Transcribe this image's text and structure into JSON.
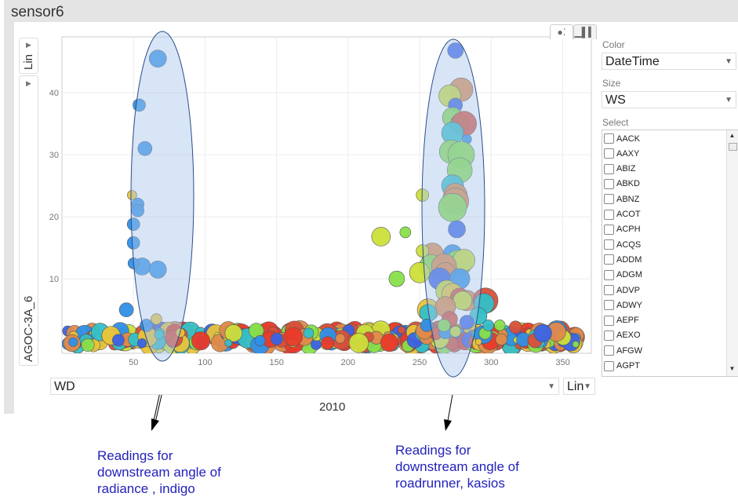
{
  "window": {
    "title": "sensor6"
  },
  "yscale_button": {
    "label": "Lin"
  },
  "yvar_select": {
    "value": "AGOC-3A_6"
  },
  "view_tabs": [
    {
      "name": "bubble",
      "icon": "bubble-chart-icon",
      "active": true
    },
    {
      "name": "bars",
      "icon": "bar-chart-icon",
      "active": false
    }
  ],
  "xvar_select": {
    "value": "WD"
  },
  "xscale_button": {
    "label": "Lin"
  },
  "x_title": "2010",
  "controls": {
    "color_label": "Color",
    "color_value": "DateTime",
    "size_label": "Size",
    "size_value": "WS",
    "select_label": "Select",
    "select_items": [
      "AACK",
      "AAXY",
      "ABIZ",
      "ABKD",
      "ABNZ",
      "ACOT",
      "ACPH",
      "ACQS",
      "ADDM",
      "ADGM",
      "ADVP",
      "ADWY",
      "AEPF",
      "AEXO",
      "AFGW",
      "AGPT"
    ]
  },
  "annotations": [
    {
      "lines": [
        "Readings for",
        "downstream angle of",
        "radiance , indigo"
      ]
    },
    {
      "lines": [
        "Readings for",
        "downstream angle of",
        "roadrunner,  kasios"
      ]
    }
  ],
  "chart_data": {
    "type": "scatter",
    "xlabel": "WD",
    "ylabel": "AGOC-3A_6",
    "xlim": [
      0,
      370
    ],
    "ylim": [
      -2,
      49
    ],
    "xticks": [
      50,
      100,
      150,
      200,
      250,
      300,
      350
    ],
    "yticks": [
      10,
      20,
      30,
      40
    ],
    "color_var": "DateTime",
    "size_var": "WS",
    "colors": [
      "#2f8fe8",
      "#3a62e6",
      "#34c0c8",
      "#88df4a",
      "#cddf3a",
      "#e8c43a",
      "#e08a4a",
      "#d8503a",
      "#e83a2a"
    ],
    "points": [
      {
        "x": 67,
        "y": 45.5,
        "s": 11,
        "c": 0
      },
      {
        "x": 54,
        "y": 38,
        "s": 8,
        "c": 0
      },
      {
        "x": 58,
        "y": 31,
        "s": 9,
        "c": 0
      },
      {
        "x": 49,
        "y": 23.5,
        "s": 6,
        "c": 5
      },
      {
        "x": 53,
        "y": 22,
        "s": 8,
        "c": 0
      },
      {
        "x": 53,
        "y": 21,
        "s": 8,
        "c": 0
      },
      {
        "x": 50,
        "y": 18.8,
        "s": 8,
        "c": 0
      },
      {
        "x": 50,
        "y": 15.8,
        "s": 8,
        "c": 0
      },
      {
        "x": 56,
        "y": 12,
        "s": 11,
        "c": 0
      },
      {
        "x": 67,
        "y": 11.5,
        "s": 11,
        "c": 0
      },
      {
        "x": 50,
        "y": 12.5,
        "s": 7,
        "c": 0
      },
      {
        "x": 45,
        "y": 5,
        "s": 9,
        "c": 0
      },
      {
        "x": 59,
        "y": 2.5,
        "s": 8,
        "c": 0
      },
      {
        "x": 66,
        "y": 3.5,
        "s": 7,
        "c": 5
      },
      {
        "x": 68,
        "y": 1,
        "s": 6,
        "c": 2
      },
      {
        "x": 275,
        "y": 46.8,
        "s": 10,
        "c": 1
      },
      {
        "x": 279,
        "y": 40.5,
        "s": 15,
        "c": 6
      },
      {
        "x": 271,
        "y": 39.5,
        "s": 14,
        "c": 4
      },
      {
        "x": 275,
        "y": 38,
        "s": 9,
        "c": 1
      },
      {
        "x": 273,
        "y": 36,
        "s": 13,
        "c": 3
      },
      {
        "x": 278,
        "y": 35,
        "s": 12,
        "c": 3
      },
      {
        "x": 281,
        "y": 35,
        "s": 16,
        "c": 7
      },
      {
        "x": 273,
        "y": 33.5,
        "s": 14,
        "c": 2
      },
      {
        "x": 283,
        "y": 32.5,
        "s": 6,
        "c": 0
      },
      {
        "x": 272,
        "y": 30.5,
        "s": 15,
        "c": 3
      },
      {
        "x": 279,
        "y": 30,
        "s": 17,
        "c": 3
      },
      {
        "x": 278,
        "y": 27.5,
        "s": 16,
        "c": 3
      },
      {
        "x": 273,
        "y": 25,
        "s": 14,
        "c": 2
      },
      {
        "x": 275,
        "y": 23.5,
        "s": 15,
        "c": 6
      },
      {
        "x": 275,
        "y": 22.5,
        "s": 17,
        "c": 6
      },
      {
        "x": 273,
        "y": 21.5,
        "s": 18,
        "c": 3
      },
      {
        "x": 252,
        "y": 23.5,
        "s": 8,
        "c": 4
      },
      {
        "x": 276,
        "y": 18,
        "s": 11,
        "c": 1
      },
      {
        "x": 223,
        "y": 16.8,
        "s": 12,
        "c": 4
      },
      {
        "x": 240,
        "y": 17.5,
        "s": 7,
        "c": 3
      },
      {
        "x": 259,
        "y": 14,
        "s": 14,
        "c": 6
      },
      {
        "x": 252,
        "y": 14.5,
        "s": 8,
        "c": 4
      },
      {
        "x": 273,
        "y": 14,
        "s": 12,
        "c": 0
      },
      {
        "x": 277,
        "y": 12.5,
        "s": 17,
        "c": 3
      },
      {
        "x": 281,
        "y": 13,
        "s": 14,
        "c": 4
      },
      {
        "x": 258,
        "y": 12,
        "s": 15,
        "c": 3
      },
      {
        "x": 267,
        "y": 12,
        "s": 16,
        "c": 6
      },
      {
        "x": 268,
        "y": 11,
        "s": 13,
        "c": 6
      },
      {
        "x": 250,
        "y": 11,
        "s": 13,
        "c": 4
      },
      {
        "x": 234,
        "y": 10,
        "s": 10,
        "c": 3
      },
      {
        "x": 264,
        "y": 10,
        "s": 14,
        "c": 1
      },
      {
        "x": 278,
        "y": 10,
        "s": 13,
        "c": 0
      },
      {
        "x": 269,
        "y": 8,
        "s": 14,
        "c": 4
      },
      {
        "x": 273,
        "y": 7.5,
        "s": 14,
        "c": 5
      },
      {
        "x": 278,
        "y": 7,
        "s": 12,
        "c": 7
      },
      {
        "x": 283,
        "y": 6.5,
        "s": 13,
        "c": 6
      },
      {
        "x": 296,
        "y": 6.5,
        "s": 16,
        "c": 7
      },
      {
        "x": 295,
        "y": 6,
        "s": 13,
        "c": 2
      },
      {
        "x": 280,
        "y": 6.5,
        "s": 12,
        "c": 4
      },
      {
        "x": 256,
        "y": 5,
        "s": 14,
        "c": 5
      },
      {
        "x": 268,
        "y": 5.5,
        "s": 13,
        "c": 6
      },
      {
        "x": 256,
        "y": 4.5,
        "s": 11,
        "c": 2
      },
      {
        "x": 271,
        "y": 3.5,
        "s": 10,
        "c": 7
      },
      {
        "x": 291,
        "y": 4,
        "s": 11,
        "c": 2
      },
      {
        "x": 255,
        "y": 2.5,
        "s": 8,
        "c": 0
      },
      {
        "x": 267,
        "y": 2.5,
        "s": 8,
        "c": 3
      },
      {
        "x": 283,
        "y": 3,
        "s": 9,
        "c": 1
      },
      {
        "x": 298,
        "y": 2.5,
        "s": 7,
        "c": 2
      },
      {
        "x": 306,
        "y": 2.5,
        "s": 7,
        "c": 3
      },
      {
        "x": 275,
        "y": 1.5,
        "s": 7,
        "c": 4
      },
      {
        "x": 317,
        "y": 2.2,
        "s": 8,
        "c": 7
      }
    ]
  }
}
